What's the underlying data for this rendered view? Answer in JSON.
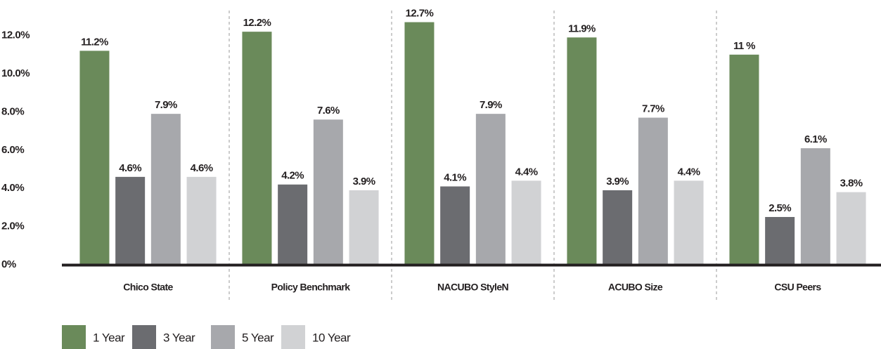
{
  "chart_data": {
    "type": "bar",
    "categories": [
      "Chico State",
      "Policy Benchmark",
      "NACUBO StyleN",
      "ACUBO Size",
      "CSU Peers"
    ],
    "series": [
      {
        "name": "1 Year",
        "color": "#6a8a5a",
        "values": [
          11.2,
          12.2,
          12.7,
          11.9,
          11
        ],
        "value_labels": [
          "11.2%",
          "12.2%",
          "12.7%",
          "11.9%",
          "11 %"
        ]
      },
      {
        "name": "3 Year",
        "color": "#6b6c70",
        "values": [
          4.6,
          4.2,
          4.1,
          3.9,
          2.5
        ],
        "value_labels": [
          "4.6%",
          "4.2%",
          "4.1%",
          "3.9%",
          "2.5%"
        ]
      },
      {
        "name": "5 Year",
        "color": "#a7a8ac",
        "values": [
          7.9,
          7.6,
          7.9,
          7.7,
          6.1
        ],
        "value_labels": [
          "7.9%",
          "7.6%",
          "7.9%",
          "7.7%",
          "6.1%"
        ]
      },
      {
        "name": "10 Year",
        "color": "#d1d2d4",
        "values": [
          4.6,
          3.9,
          4.4,
          4.4,
          3.8
        ],
        "value_labels": [
          "4.6%",
          "3.9%",
          "4.4%",
          "4.4%",
          "3.8%"
        ]
      }
    ],
    "ylim": [
      0,
      13
    ],
    "yticks": [
      {
        "value": 0,
        "label": "0%"
      },
      {
        "value": 2,
        "label": "2.0%"
      },
      {
        "value": 4,
        "label": "4.0%"
      },
      {
        "value": 6,
        "label": "6.0%"
      },
      {
        "value": 8,
        "label": "8.0%"
      },
      {
        "value": 10,
        "label": "10.0%"
      },
      {
        "value": 12,
        "label": "12.0%"
      }
    ],
    "grid": false,
    "legend": "bottom-left"
  }
}
